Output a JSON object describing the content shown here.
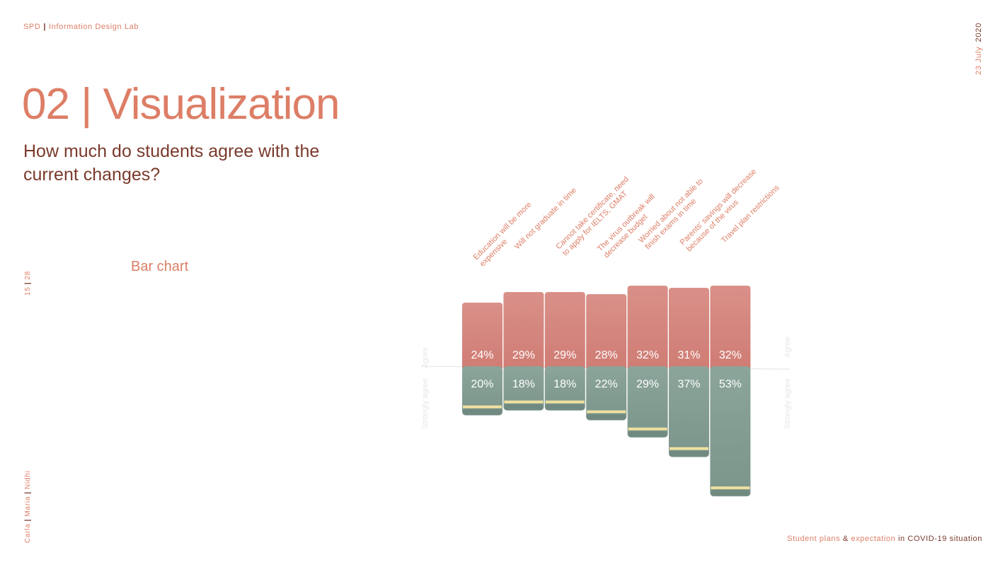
{
  "header": {
    "org": "SPD",
    "lab": "Information Design Lab",
    "date_day_month": "23  July",
    "date_year": "2020"
  },
  "title": "02 | Visualization",
  "subtitle": "How much do students agree with the current changes?",
  "section_label": "Bar chart",
  "page": {
    "current": "15",
    "total": "28"
  },
  "authors": [
    "Carla",
    "Maria",
    "Nidhi"
  ],
  "footer": {
    "part1": "Student plans",
    "amp": "&",
    "part2": "expectation",
    "part3": "in COVID-19 situation"
  },
  "colors": {
    "accent": "#dd7e66",
    "dark_text": "#7a3a2c",
    "agree": "#d4807a",
    "strongly_agree": "#87a096",
    "band": "#efe0a0",
    "axis_label": "#e6e6e6"
  },
  "chart_data": {
    "type": "bar",
    "stacked": "diverging",
    "categories": [
      "Education will be more expensive",
      "Will not graduate in time",
      "Cannot take certificate, need to apply for IELTS, GMAT",
      "The virus outbreak will decrease budget",
      "Worried about not able to finish exams in time",
      "Parents' savings will decrease because of the virus",
      "Travel plan restrictions"
    ],
    "series": [
      {
        "name": "Agree",
        "values": [
          24,
          29,
          29,
          28,
          32,
          31,
          32
        ],
        "labels": [
          "24%",
          "29%",
          "29%",
          "28%",
          "32%",
          "31%",
          "32%"
        ]
      },
      {
        "name": "Strongly agree",
        "values": [
          20,
          18,
          18,
          22,
          29,
          37,
          53
        ],
        "labels": [
          "20%",
          "18%",
          "18%",
          "22%",
          "29%",
          "37%",
          "53%"
        ]
      }
    ],
    "axis_labels": {
      "upper": "Agree",
      "lower": "Strongly agree"
    },
    "unit": "%"
  }
}
